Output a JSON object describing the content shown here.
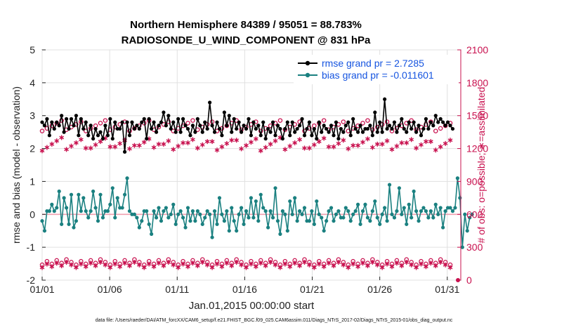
{
  "chart_data": {
    "type": "line",
    "title": "Northern Hemisphere 84389 / 95051 = 88.783%",
    "subtitle": "RADIOSONDE_U_WIND_COMPONENT @ 831 hPa",
    "xlabel": "Jan.01,2015 00:00:00 start",
    "ylabel": "rmse and bias (model - observation)",
    "ylabel_right": "# of obs: o=possible; ∗=assimilated",
    "ylim": [
      -2,
      5
    ],
    "ylim_right": [
      0,
      2100
    ],
    "xlim": [
      1,
      32
    ],
    "x_ticks": [
      1,
      6,
      11,
      16,
      21,
      26,
      31
    ],
    "x_tick_labels": [
      "01/01",
      "01/06",
      "01/11",
      "01/16",
      "01/21",
      "01/26",
      "01/31"
    ],
    "y_ticks": [
      -2,
      -1,
      0,
      1,
      2,
      3,
      4,
      5
    ],
    "y_tick_labels": [
      "-2",
      "-1",
      "0",
      "1",
      "2",
      "3",
      "4",
      "5"
    ],
    "y_ticks_right": [
      0,
      300,
      600,
      900,
      1200,
      1500,
      1800,
      2100
    ],
    "y_tick_labels_right": [
      "0",
      "300",
      "600",
      "900",
      "1200",
      "1500",
      "1800",
      "2100"
    ],
    "footer": "data file: /Users/raeder/DAI/ATM_forcXX/CAM6_setup/f.e21.FHIST_BGC.f09_025.CAM6assim.011/Diags_NTrS_2017-02/Diags_NTrS_2015-01/obs_diag_output.nc",
    "legend_position": "top-right",
    "series": [
      {
        "name": "rmse grand pr = 2.7285",
        "color": "#000000",
        "marker": "filled-circle",
        "axis": "left",
        "values": [
          2.8,
          2.7,
          2.9,
          2.4,
          2.8,
          2.6,
          2.8,
          2.7,
          3.0,
          2.5,
          2.9,
          2.6,
          2.9,
          2.7,
          3.0,
          2.4,
          2.9,
          2.6,
          2.8,
          2.4,
          2.7,
          2.3,
          2.6,
          2.4,
          2.5,
          2.3,
          2.7,
          2.4,
          2.9,
          2.3,
          2.8,
          2.6,
          2.6,
          2.8,
          1.9,
          2.8,
          2.4,
          2.8,
          2.6,
          2.7,
          2.6,
          2.8,
          2.9,
          2.3,
          2.9,
          2.6,
          2.8,
          2.5,
          2.7,
          2.8,
          3.1,
          2.7,
          3.0,
          2.6,
          2.8,
          2.5,
          2.9,
          2.5,
          2.9,
          2.7,
          2.6,
          2.4,
          2.7,
          2.5,
          2.9,
          2.7,
          2.5,
          2.8,
          2.6,
          3.4,
          2.7,
          2.5,
          2.8,
          2.6,
          2.4,
          3.1,
          2.7,
          3.0,
          2.5,
          2.9,
          2.6,
          2.8,
          2.5,
          2.7,
          2.6,
          2.9,
          2.4,
          2.8,
          2.6,
          2.7,
          2.4,
          2.8,
          2.3,
          2.6,
          2.5,
          2.8,
          2.4,
          2.7,
          2.6,
          2.3,
          2.6,
          2.8,
          2.4,
          2.8,
          2.5,
          2.6,
          2.7,
          2.9,
          2.4,
          2.6,
          2.8,
          2.4,
          2.6,
          2.3,
          2.8,
          2.5,
          2.7,
          2.6,
          2.5,
          2.7,
          2.4,
          2.8,
          2.3,
          2.6,
          2.5,
          2.7,
          2.8,
          2.4,
          2.9,
          2.6,
          2.5,
          2.7,
          2.5,
          2.6,
          2.6,
          2.7,
          2.4,
          3.1,
          2.5,
          2.8,
          2.5,
          3.5,
          2.6,
          2.7,
          2.6,
          2.8,
          2.5,
          2.7,
          2.9,
          2.6,
          2.5,
          2.8,
          2.6,
          2.8,
          2.5,
          2.7,
          2.4,
          2.6,
          2.9,
          2.6,
          2.8,
          2.7,
          3.0,
          2.8,
          2.9,
          2.8,
          2.7,
          2.8,
          2.7,
          2.6
        ]
      },
      {
        "name": "bias grand pr = -0.011601",
        "color": "#1a8080",
        "marker": "filled-circle",
        "axis": "left",
        "values": [
          -0.2,
          -0.5,
          0.1,
          0.1,
          0.3,
          0.1,
          0.2,
          0.7,
          -0.3,
          0.5,
          0.2,
          -0.3,
          0.6,
          -0.4,
          -0.2,
          0.6,
          0.1,
          0.5,
          0.1,
          -0.1,
          0.1,
          0.7,
          0.2,
          -0.2,
          0.6,
          -0.1,
          0.1,
          0.1,
          0.3,
          0.8,
          -0.1,
          0.5,
          0.2,
          0.2,
          0.6,
          1.1,
          0.1,
          0.0,
          0.0,
          -0.1,
          -0.4,
          -0.2,
          0.1,
          0.1,
          -0.3,
          -0.6,
          0.1,
          -0.1,
          0.2,
          -0.2,
          0.1,
          0.2,
          -0.1,
          0.0,
          0.3,
          -0.3,
          0.0,
          0.1,
          -0.1,
          -0.4,
          0.2,
          -0.2,
          0.1,
          -0.2,
          0.1,
          0.0,
          -0.3,
          -0.1,
          0.1,
          0.0,
          -0.7,
          0.1,
          -0.3,
          0.5,
          0.0,
          -0.2,
          0.1,
          -0.5,
          0.2,
          -0.2,
          -0.5,
          0.0,
          0.2,
          -0.3,
          0.1,
          -0.1,
          0.5,
          -0.1,
          0.4,
          -0.2,
          0.6,
          0.2,
          0.1,
          -0.4,
          0.1,
          -0.1,
          0.8,
          -0.2,
          -0.6,
          0.1,
          0.0,
          -0.5,
          0.4,
          0.0,
          0.5,
          -0.2,
          0.1,
          0.0,
          0.2,
          -0.2,
          -0.2,
          0.1,
          -0.3,
          0.4,
          0.0,
          -0.1,
          -0.5,
          -0.2,
          0.1,
          0.2,
          -0.2,
          0.0,
          0.1,
          -0.1,
          -0.1,
          0.2,
          0.1,
          -0.2,
          0.0,
          0.1,
          0.3,
          -0.3,
          0.1,
          0.3,
          -0.1,
          -0.2,
          0.1,
          0.4,
          -0.1,
          -0.3,
          0.0,
          0.2,
          -0.2,
          0.9,
          0.0,
          -0.1,
          0.1,
          0.8,
          0.0,
          0.2,
          -0.3,
          0.3,
          -0.1,
          0.7,
          0.1,
          -0.2,
          0.1,
          0.2,
          0.1,
          -0.1,
          0.1,
          -0.1,
          0.3,
          0.0,
          0.2,
          -0.4,
          0.1,
          0.2,
          0.2,
          0.1,
          0.2,
          1.1,
          0.5,
          -1.0,
          0.0,
          -0.5,
          -0.1,
          0.0
        ]
      },
      {
        "name": "possible obs",
        "color": "#c8104e",
        "marker": "open-circle",
        "axis": "right",
        "values": [
          0
        ]
      },
      {
        "name": "assimilated obs",
        "color": "#c8104e",
        "marker": "asterisk",
        "axis": "right",
        "values": [
          0
        ]
      }
    ]
  }
}
